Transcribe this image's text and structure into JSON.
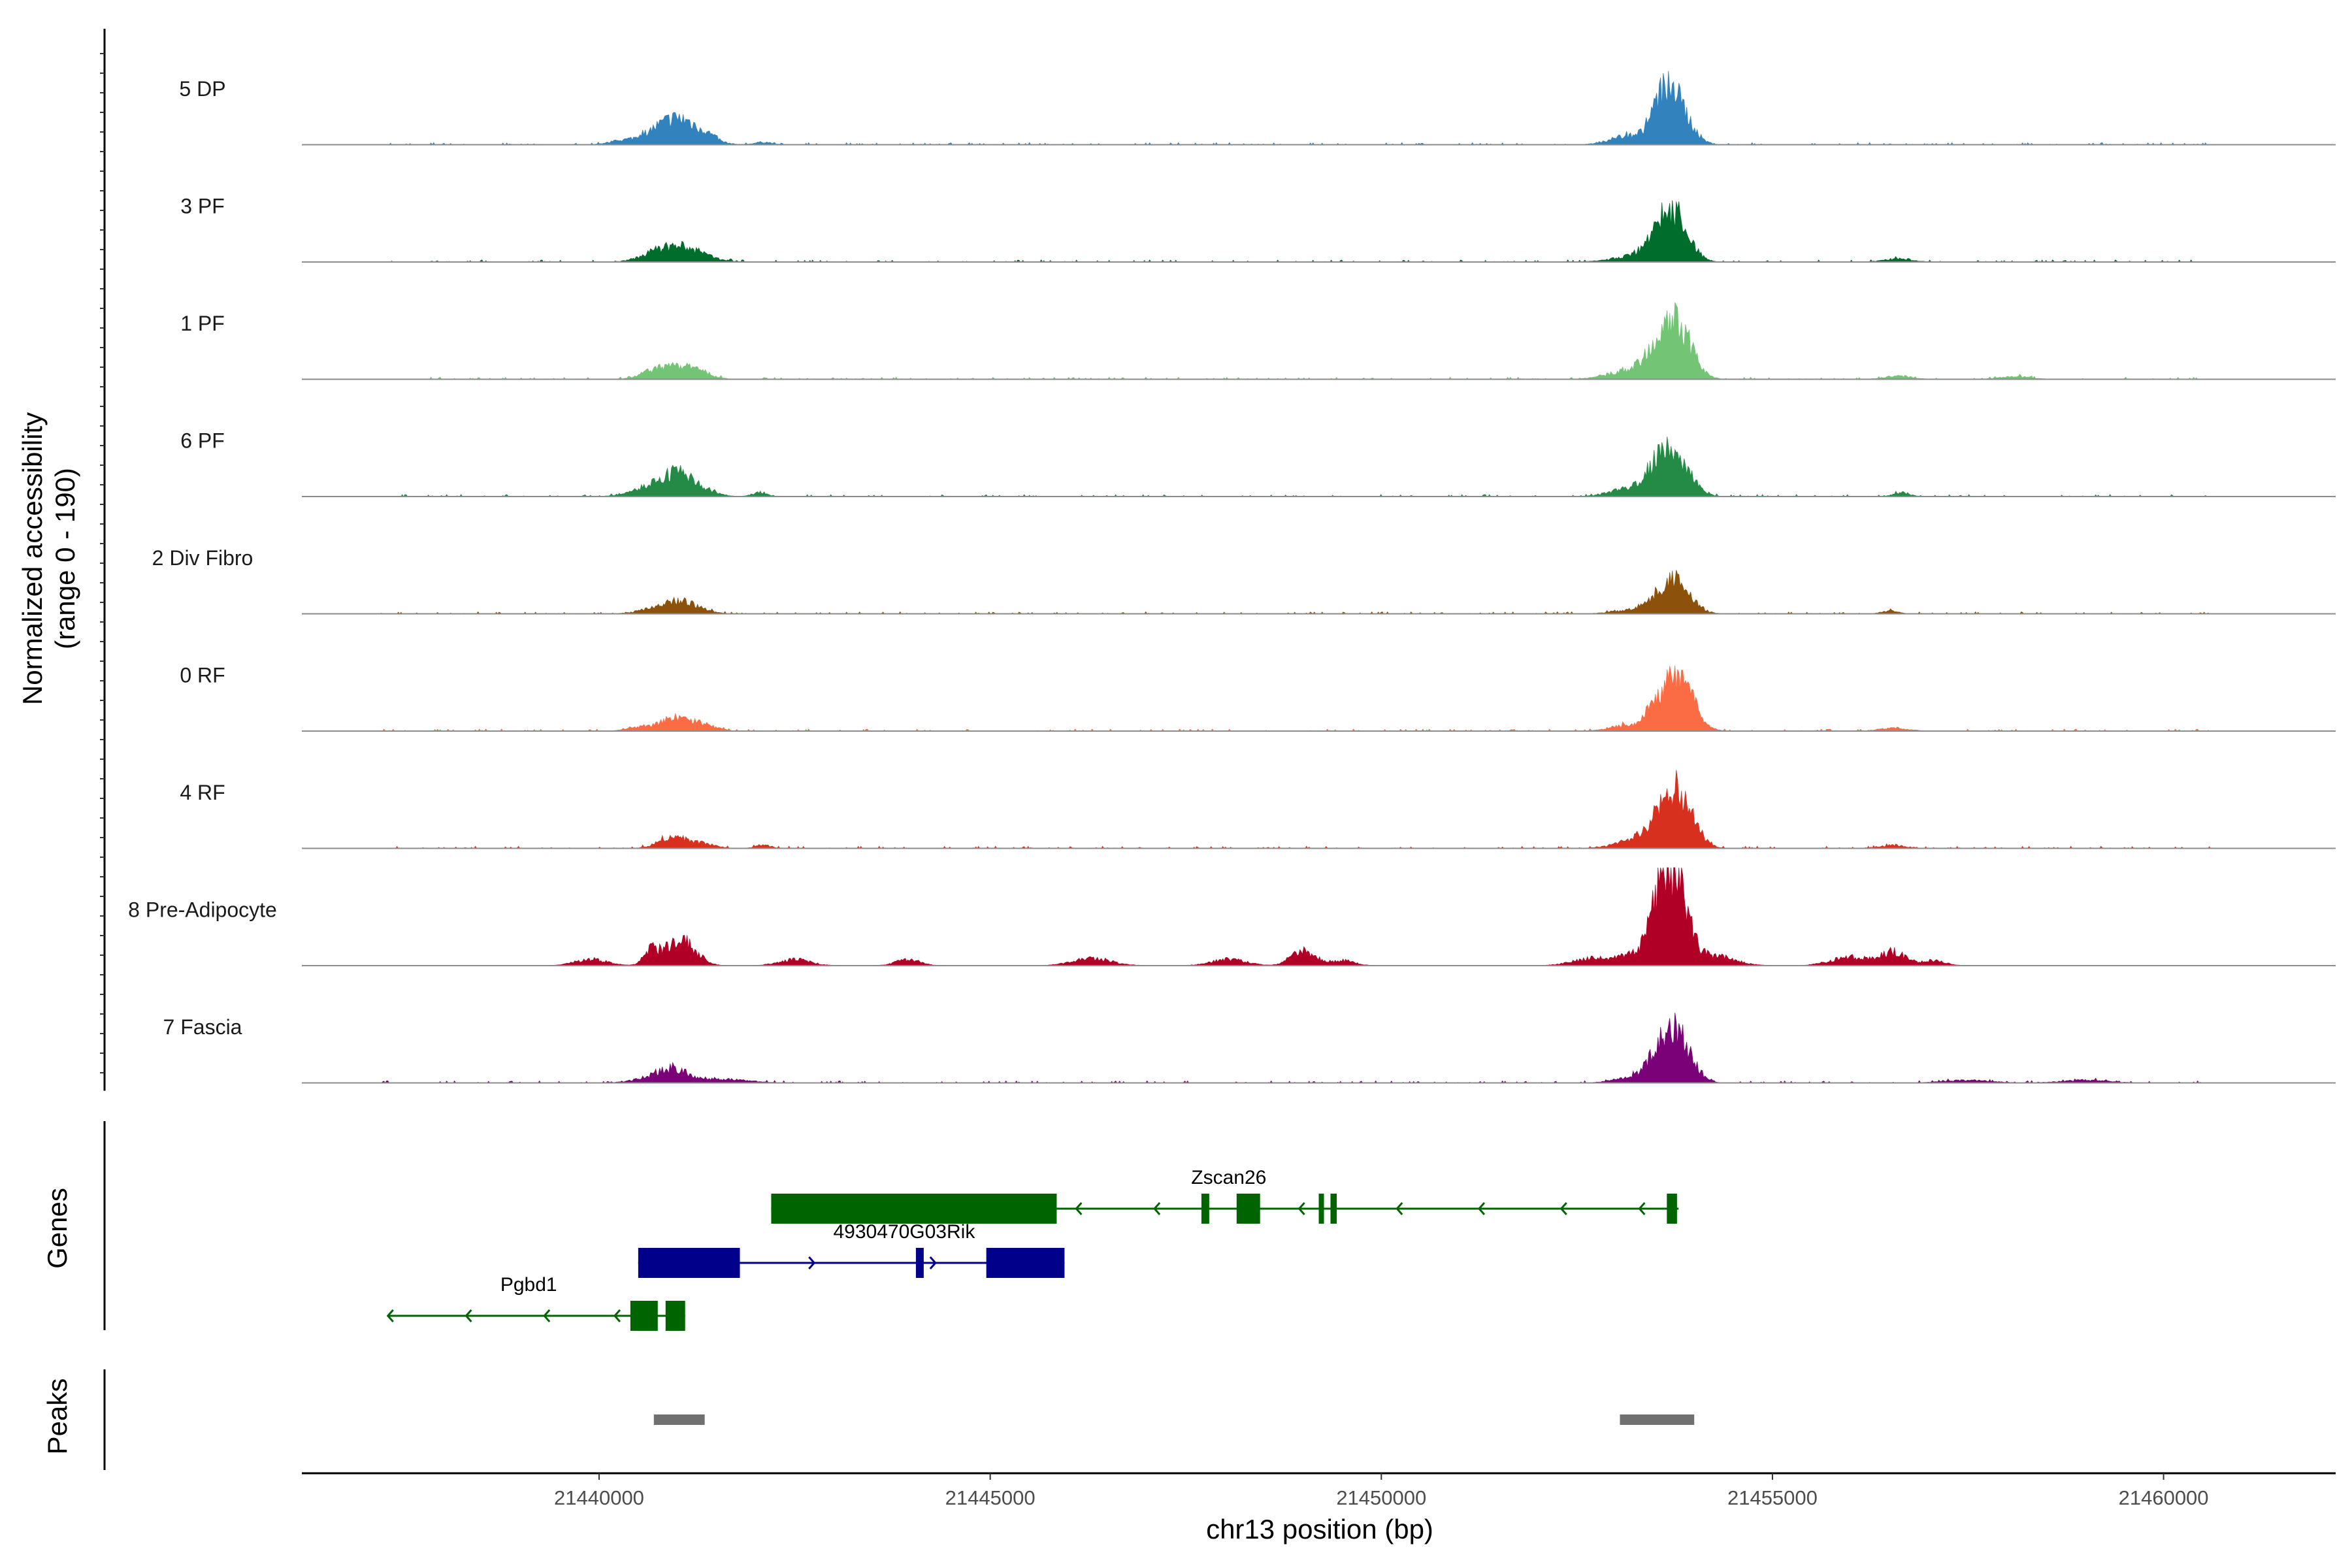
{
  "chart_data": {
    "type": "area",
    "chromosome": "chr13",
    "xlabel": "chr13 position (bp)",
    "ylabel_line1": "Normalized accessibility",
    "ylabel_line2": "(range 0 - 190)",
    "xlim": [
      21436200,
      21462200
    ],
    "ylim": [
      0,
      190
    ],
    "x_ticks": [
      21440000,
      21445000,
      21450000,
      21455000,
      21460000
    ],
    "x_tick_labels": [
      "21440000",
      "21445000",
      "21450000",
      "21455000",
      "21460000"
    ],
    "signal_range": [
      21437200,
      21460600
    ],
    "genes_panel_label": "Genes",
    "peaks_panel_label": "Peaks",
    "tracks": [
      {
        "name": "5 DP",
        "color": "#3182bd",
        "peaks": [
          [
            21441050,
            45,
            260
          ],
          [
            21440700,
            14,
            250
          ],
          [
            21440250,
            5,
            150
          ],
          [
            21441400,
            5,
            100
          ],
          [
            21442100,
            5,
            110
          ],
          [
            21453200,
            12,
            250
          ],
          [
            21453580,
            50,
            140
          ],
          [
            21453760,
            78,
            180
          ],
          [
            21453100,
            5,
            200
          ]
        ]
      },
      {
        "name": "3 PF",
        "color": "#006d2c",
        "peaks": [
          [
            21441050,
            28,
            280
          ],
          [
            21440700,
            9,
            200
          ],
          [
            21453300,
            12,
            300
          ],
          [
            21453550,
            42,
            160
          ],
          [
            21453780,
            72,
            170
          ],
          [
            21456600,
            6,
            180
          ]
        ]
      },
      {
        "name": "1 PF",
        "color": "#74c476",
        "peaks": [
          [
            21440700,
            15,
            170
          ],
          [
            21441100,
            25,
            220
          ],
          [
            21453050,
            12,
            230
          ],
          [
            21453380,
            22,
            160
          ],
          [
            21453580,
            46,
            150
          ],
          [
            21453800,
            92,
            180
          ],
          [
            21456600,
            6,
            180
          ],
          [
            21458100,
            5,
            200
          ]
        ]
      },
      {
        "name": "6 PF",
        "color": "#238b45",
        "peaks": [
          [
            21440700,
            16,
            260
          ],
          [
            21441000,
            34,
            220
          ],
          [
            21441300,
            8,
            200
          ],
          [
            21442050,
            8,
            90
          ],
          [
            21453100,
            12,
            220
          ],
          [
            21453400,
            18,
            170
          ],
          [
            21453580,
            42,
            150
          ],
          [
            21453780,
            70,
            180
          ],
          [
            21456650,
            8,
            100
          ]
        ]
      },
      {
        "name": "2 Div Fibro",
        "color": "#8c510a",
        "peaks": [
          [
            21440700,
            8,
            200
          ],
          [
            21441050,
            24,
            220
          ],
          [
            21453300,
            8,
            280
          ],
          [
            21453580,
            24,
            180
          ],
          [
            21453800,
            48,
            180
          ],
          [
            21456500,
            6,
            100
          ]
        ]
      },
      {
        "name": "0 RF",
        "color": "#fc6c44",
        "peaks": [
          [
            21440500,
            7,
            150
          ],
          [
            21440950,
            24,
            180
          ],
          [
            21441300,
            12,
            180
          ],
          [
            21453100,
            10,
            200
          ],
          [
            21453550,
            48,
            150
          ],
          [
            21453830,
            88,
            180
          ],
          [
            21456550,
            6,
            180
          ]
        ]
      },
      {
        "name": "4 RF",
        "color": "#d7301f",
        "peaks": [
          [
            21440950,
            22,
            180
          ],
          [
            21441350,
            8,
            150
          ],
          [
            21442100,
            6,
            100
          ],
          [
            21453300,
            18,
            260
          ],
          [
            21453580,
            40,
            150
          ],
          [
            21453820,
            95,
            180
          ],
          [
            21456550,
            6,
            150
          ]
        ]
      },
      {
        "name": "8 Pre-Adipocyte",
        "color": "#b10026",
        "peaks": [
          [
            21439900,
            12,
            200
          ],
          [
            21440650,
            20,
            80
          ],
          [
            21440950,
            36,
            200
          ],
          [
            21441150,
            20,
            150
          ],
          [
            21442500,
            12,
            200
          ],
          [
            21443950,
            12,
            150
          ],
          [
            21446300,
            14,
            250
          ],
          [
            21448050,
            12,
            220
          ],
          [
            21449000,
            30,
            150
          ],
          [
            21449500,
            10,
            150
          ],
          [
            21452700,
            14,
            250
          ],
          [
            21453280,
            22,
            200
          ],
          [
            21453580,
            140,
            130
          ],
          [
            21453820,
            140,
            130
          ],
          [
            21454250,
            20,
            250
          ],
          [
            21456000,
            16,
            250
          ],
          [
            21456550,
            26,
            150
          ],
          [
            21457050,
            10,
            150
          ]
        ]
      },
      {
        "name": "7 Fascia",
        "color": "#7a0177",
        "peaks": [
          [
            21440950,
            22,
            200
          ],
          [
            21440700,
            8,
            250
          ],
          [
            21441600,
            7,
            300
          ],
          [
            21453300,
            14,
            250
          ],
          [
            21453580,
            60,
            140
          ],
          [
            21453830,
            80,
            160
          ],
          [
            21457500,
            5,
            300
          ],
          [
            21459000,
            5,
            300
          ]
        ]
      }
    ],
    "genes": [
      {
        "name": "Zscan26",
        "strand": "-",
        "color": "#006400",
        "row": 0,
        "start": 21442200,
        "end": 21453800,
        "exons": [
          [
            21442200,
            21445850
          ],
          [
            21447700,
            21447800
          ],
          [
            21448150,
            21448450
          ],
          [
            21449200,
            21449250
          ],
          [
            21449350,
            21449430
          ],
          [
            21453650,
            21453780
          ]
        ],
        "arrows": [
          21446100,
          21447100,
          21448950,
          21450200,
          21451250,
          21452300,
          21453300
        ],
        "label_at": 21448050,
        "label_row_offset": -1
      },
      {
        "name": "4930470G03Rik",
        "strand": "+",
        "color": "#00008b",
        "row": 1,
        "start": 21440500,
        "end": 21445950,
        "exons": [
          [
            21440500,
            21441800
          ],
          [
            21444050,
            21444150
          ],
          [
            21444950,
            21445950
          ]
        ],
        "arrows": [
          21442750,
          21444300
        ],
        "label_at": 21443900,
        "label_row_offset": -1
      },
      {
        "name": "Pgbd1",
        "strand": "-",
        "color": "#006400",
        "row": 2,
        "start": 21437300,
        "end": 21441100,
        "exons": [
          [
            21440400,
            21440750
          ],
          [
            21440850,
            21441100
          ]
        ],
        "arrows": [
          21437300,
          21438300,
          21439300,
          21440200
        ],
        "label_at": 21439100,
        "label_row_offset": -1
      }
    ],
    "peak_regions": [
      [
        21440700,
        21441350
      ],
      [
        21453050,
        21454000
      ]
    ]
  }
}
